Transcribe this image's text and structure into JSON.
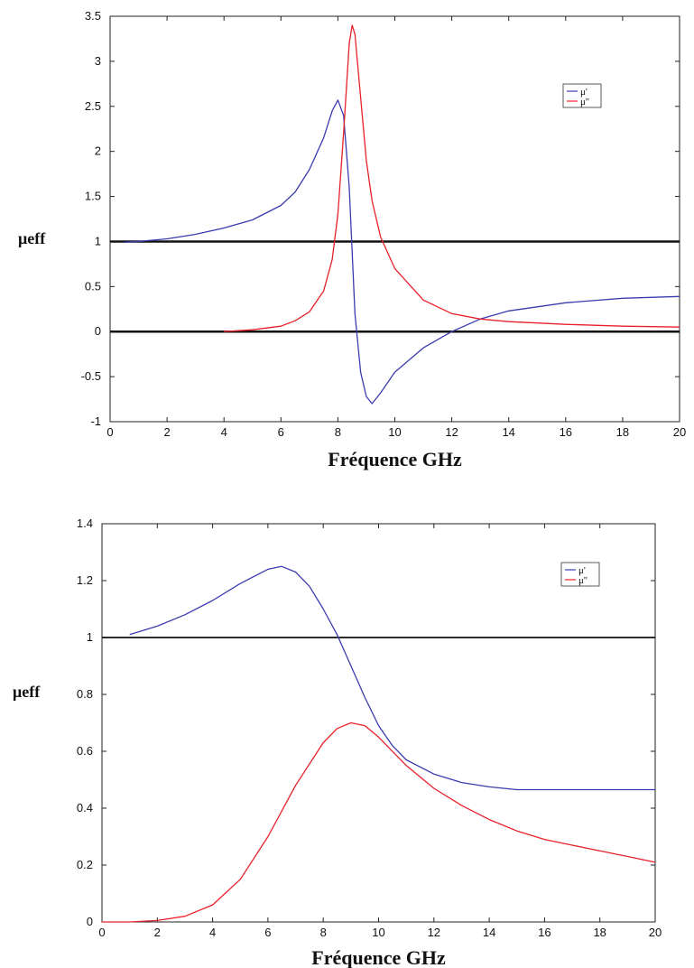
{
  "chart_data": [
    {
      "type": "line",
      "xlabel": "Fréquence GHz",
      "ylabel": "μeff",
      "xlim": [
        0,
        20
      ],
      "ylim": [
        -1,
        3.5
      ],
      "x_ticks": [
        "0",
        "2",
        "4",
        "6",
        "8",
        "10",
        "12",
        "14",
        "16",
        "18",
        "20"
      ],
      "y_ticks": [
        "-1",
        "-0.5",
        "0",
        "0.5",
        "1",
        "1.5",
        "2",
        "2.5",
        "3",
        "3.5"
      ],
      "hlines": [
        1,
        0
      ],
      "legend": "top-right",
      "colors": {
        "mu_prime": "#3b3bb0",
        "mu_second": "#e8202a",
        "hline": "#111111"
      },
      "series": [
        {
          "name": "μ'",
          "color": "#3b3bb0",
          "x": [
            0.5,
            1,
            2,
            3,
            4,
            5,
            6,
            6.5,
            7,
            7.5,
            7.8,
            8,
            8.2,
            8.4,
            8.6,
            8.8,
            9,
            9.2,
            9.5,
            10,
            11,
            12,
            13,
            14,
            16,
            18,
            20
          ],
          "y": [
            0.99,
            1.0,
            1.03,
            1.08,
            1.15,
            1.24,
            1.4,
            1.55,
            1.8,
            2.15,
            2.45,
            2.57,
            2.4,
            1.6,
            0.2,
            -0.45,
            -0.72,
            -0.8,
            -0.68,
            -0.45,
            -0.18,
            0.0,
            0.14,
            0.23,
            0.32,
            0.37,
            0.39
          ]
        },
        {
          "name": "μ''",
          "color": "#e8202a",
          "x": [
            4,
            5,
            6,
            6.5,
            7,
            7.5,
            7.8,
            8,
            8.2,
            8.4,
            8.5,
            8.6,
            8.8,
            9,
            9.2,
            9.5,
            10,
            11,
            12,
            13,
            14,
            16,
            18,
            20
          ],
          "y": [
            0.0,
            0.02,
            0.06,
            0.12,
            0.22,
            0.45,
            0.8,
            1.3,
            2.2,
            3.2,
            3.4,
            3.3,
            2.6,
            1.9,
            1.45,
            1.05,
            0.7,
            0.35,
            0.2,
            0.14,
            0.11,
            0.08,
            0.06,
            0.05
          ]
        }
      ]
    },
    {
      "type": "line",
      "xlabel": "Fréquence GHz",
      "ylabel": "μeff",
      "xlim": [
        0,
        20
      ],
      "ylim": [
        0,
        1.4
      ],
      "x_ticks": [
        "0",
        "2",
        "4",
        "6",
        "8",
        "10",
        "12",
        "14",
        "16",
        "18",
        "20"
      ],
      "y_ticks": [
        "0",
        "0.2",
        "0.4",
        "0.6",
        "0.8",
        "1",
        "1.2",
        "1.4"
      ],
      "hlines": [
        1
      ],
      "legend": "top-right",
      "colors": {
        "mu_prime": "#3b3bb0",
        "mu_second": "#e8202a",
        "hline": "#111111"
      },
      "series": [
        {
          "name": "μ'",
          "color": "#3b3bb0",
          "x": [
            1,
            2,
            3,
            4,
            5,
            6,
            6.5,
            7,
            7.5,
            8,
            8.5,
            9,
            9.5,
            10,
            10.5,
            11,
            12,
            13,
            14,
            15,
            16,
            18,
            20
          ],
          "y": [
            1.01,
            1.04,
            1.08,
            1.13,
            1.19,
            1.24,
            1.25,
            1.23,
            1.18,
            1.1,
            1.01,
            0.9,
            0.79,
            0.69,
            0.62,
            0.57,
            0.52,
            0.49,
            0.475,
            0.465,
            0.465,
            0.465,
            0.465
          ]
        },
        {
          "name": "μ''",
          "color": "#e8202a",
          "x": [
            0,
            1,
            2,
            3,
            4,
            5,
            6,
            7,
            8,
            8.5,
            9,
            9.5,
            10,
            11,
            12,
            13,
            14,
            15,
            16,
            17,
            18,
            19,
            20
          ],
          "y": [
            0.0,
            0.0,
            0.005,
            0.02,
            0.06,
            0.15,
            0.3,
            0.48,
            0.63,
            0.68,
            0.7,
            0.69,
            0.65,
            0.55,
            0.47,
            0.41,
            0.36,
            0.32,
            0.29,
            0.27,
            0.25,
            0.23,
            0.21
          ]
        }
      ]
    }
  ]
}
